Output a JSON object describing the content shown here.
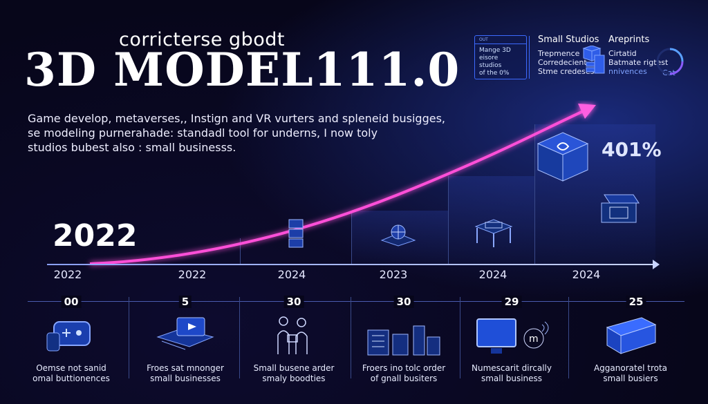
{
  "header": {
    "subtitle": "corricterse gbodt",
    "title": "3D MODEL111.0"
  },
  "description": {
    "lines": [
      "Game develop, metaverses,, Instign and VR vurters and spleneid busigges,",
      "se modeling purnerahade: standadl tool for underns, I now toly",
      "studios bubest also : small businesss."
    ]
  },
  "hero_year": "2022",
  "growth_label": "401%",
  "info_box": {
    "header": "OUT",
    "lines": [
      "Mange 3D",
      "eisore studios",
      "of the 0%"
    ]
  },
  "top_right": {
    "col1": {
      "head": "Small Studios",
      "lines": [
        "Trepmence",
        "Corredecient",
        "Stme credeses"
      ]
    },
    "col2": {
      "head": "Areprints",
      "lines": [
        "Cirtatid",
        "Batmate rigtest",
        "nnivences",
        "Cat"
      ]
    }
  },
  "timeline": {
    "labels": [
      "2022",
      "2022",
      "2024",
      "2023",
      "2024",
      "2024"
    ]
  },
  "stats": [
    {
      "num": "00",
      "cap1": "Oemse not sanid",
      "cap2": "omal buttionences"
    },
    {
      "num": "5",
      "cap1": "Froes sat mnonger",
      "cap2": "small businesses"
    },
    {
      "num": "30",
      "cap1": "Small busene arder",
      "cap2": "smaly boodties"
    },
    {
      "num": "30",
      "cap1": "Froers ino tolc order",
      "cap2": "of gnall busiters"
    },
    {
      "num": "29",
      "cap1": "Numescarit dircally",
      "cap2": "small business"
    },
    {
      "num": "25",
      "cap1": "Agganoratel trota",
      "cap2": "small busiers"
    }
  ],
  "colors": {
    "background": "#07061a",
    "curve": "#ff4fd8",
    "accent_blue": "#3d6bff",
    "axis": "#8aa0ff"
  }
}
